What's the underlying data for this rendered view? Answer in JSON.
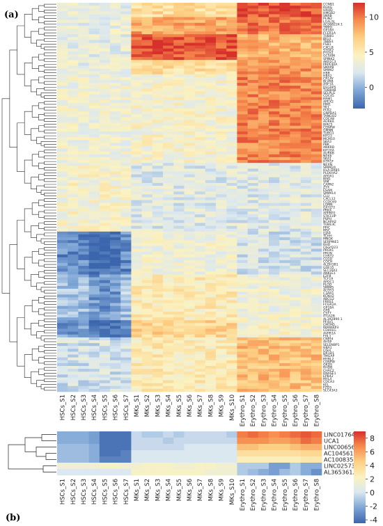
{
  "panel_a_label": "(a)",
  "panel_b_label": "(b)",
  "chart_data": [
    {
      "type": "heatmap",
      "panel": "(a)",
      "x": [
        "HSCs_S1",
        "HSCs_S2",
        "HSCs_S3",
        "HSCs_S4",
        "HSCs_S5",
        "HSCs_S6",
        "HSCs_S7",
        "MKs_S1",
        "MKs_S2",
        "MKs_S3",
        "MKs_S4",
        "MKs_S5",
        "MKs_S6",
        "MKs_S7",
        "MKs_S8",
        "MKs_S9",
        "MKs_S10",
        "Erythro_S1",
        "Erythro_S2",
        "Erythro_S3",
        "Erythro_S4",
        "Erythro_S5",
        "Erythro_S6",
        "Erythro_S7",
        "Erythro_S8"
      ],
      "genes": [
        "CCNB1",
        "RHAG",
        "UROD",
        "HMGB2",
        "SNRB",
        "PLIN2",
        "LGALSL",
        "AC068224.1",
        "TMPO",
        "GP1BA",
        "FCER1A",
        "TUBB1",
        "BIG3",
        "TBBS1",
        "FSB1",
        "CXCL8",
        "STOX2",
        "PTGS1",
        "GCSAM",
        "SPINK2",
        "AKR1C3",
        "PRPF40A",
        "SNRPB",
        "SMIM2",
        "HBB",
        "HBA2",
        "CR1AY",
        "BLVRB",
        "ASF1A",
        "DLGAP5",
        "TUBB4B",
        "SELPLG",
        "CDC45",
        "RRM1",
        "APEX2",
        "PIM1",
        "TK1",
        "PCK2",
        "GNPDA1",
        "TANGO2",
        "CDCA8",
        "AURKA",
        "BIRC5",
        "CENPW",
        "GMNN",
        "TUBG1",
        "KIF23",
        "MCM10",
        "SKA3",
        "PBK",
        "ANKRD",
        "KIF20A",
        "AURKB",
        "NEK6",
        "SKA1",
        "HTR1F",
        "NEXN",
        "SMIM24",
        "HLA-DRB5",
        "PLEKHA2",
        "APOA1",
        "BIN1",
        "VIM",
        "CAPN2",
        "ZYX",
        "ESAM",
        "SMIM14",
        "CLU",
        "CXCL12",
        "CCDC69",
        "LGMN",
        "GXYLT2",
        "PRKX",
        "APPBP2",
        "STK11IP",
        "PSPH",
        "NCAPH2",
        "TUBE3C",
        "PPIC",
        "MSC",
        "GJA4",
        "TCHH",
        "MNGK",
        "SERPINE1",
        "RHD",
        "C6orf223",
        "PROX1",
        "PRUN",
        "CHST2",
        "CD1D",
        "COCH",
        "ALDH3B1",
        "GDF15",
        "SLC16A1",
        "ANKLE1",
        "E2F8",
        "TCF19",
        "APOC1",
        "PLOD",
        "SMIM5",
        "ACER3",
        "C3AR1",
        "KCNH2",
        "ABCG2",
        "FRRS1",
        "FCGR2A",
        "GP1BA",
        "GFB",
        "CST7",
        "ITGA2B",
        "AL392890.1",
        "PF4V1",
        "CMTM5",
        "MARKBP3",
        "CD40LG",
        "AVPR1A",
        "FHL1",
        "CNIH4",
        "AHSP",
        "SELENBP1",
        "HBA1",
        "CISH",
        "DR1D1",
        "TMGAP",
        "MYBL2",
        "CENPW",
        "GKDS",
        "RHDB",
        "CHAC2",
        "RNASE1",
        "EPB42",
        "MYL4",
        "CDCA3",
        "KEL",
        "FZD5",
        "SLC43A3"
      ],
      "legend_ticks": [
        0,
        5,
        10
      ],
      "range": [
        -3,
        12
      ],
      "colormap": [
        "#3b66ad",
        "#7fa6d6",
        "#dbe8f0",
        "#fbf2c1",
        "#fdd084",
        "#f6894c",
        "#d7302b"
      ]
    },
    {
      "type": "heatmap",
      "panel": "(b)",
      "x": [
        "HSCs_S1",
        "HSCs_S2",
        "HSCs_S3",
        "HSCs_S4",
        "HSCs_S5",
        "HSCs_S6",
        "HSCs_S7",
        "MKs_S1",
        "MKs_S2",
        "MKs_S3",
        "MKs_S4",
        "MKs_S5",
        "MKs_S6",
        "MKs_S7",
        "MKs_S8",
        "MKs_S9",
        "MKs_S10",
        "Erythro_S1",
        "Erythro_S2",
        "Erythro_S3",
        "Erythro_S4",
        "Erythro_S5",
        "Erythro_S6",
        "Erythro_S7",
        "Erythro_S8"
      ],
      "y": [
        "LINC01764",
        "UCA1",
        "LINC00656",
        "AC104561.3",
        "AC100835.2",
        "LINC02573",
        "AL365361.1"
      ],
      "values": [
        [
          -2,
          -2,
          -2,
          -2.5,
          -4,
          -4,
          -4,
          -0.5,
          -1,
          -1,
          -0.5,
          -1,
          -0.5,
          -0.5,
          -0.5,
          -0.5,
          -1,
          7,
          7.5,
          7,
          6.5,
          7,
          7.5,
          8,
          7.5
        ],
        [
          -2,
          -2,
          -2,
          -2.5,
          -4,
          -4,
          -4,
          -0.5,
          -0.5,
          -0.5,
          -1,
          -0.5,
          -0.5,
          -0.5,
          -0.5,
          -0.5,
          -0.5,
          6.5,
          6.5,
          6.5,
          6,
          6,
          6.5,
          7.5,
          7
        ],
        [
          -1.5,
          -1.5,
          -1.5,
          -2,
          -4,
          -4,
          -4,
          -0.5,
          -0.5,
          -0.5,
          -0.5,
          -0.5,
          0,
          0,
          0,
          0,
          0,
          5,
          5,
          4.5,
          4.5,
          4.5,
          5,
          5.5,
          5.5
        ],
        [
          -1.5,
          -1.5,
          -1.5,
          -2,
          -4,
          -4,
          -3.5,
          0,
          0,
          0,
          0,
          0,
          0,
          0,
          0,
          0,
          0,
          3.5,
          3.5,
          3.5,
          3.5,
          3.5,
          3.5,
          4,
          4
        ],
        [
          -1.5,
          -1.5,
          -1.5,
          -2,
          -3.5,
          -3.5,
          -3.5,
          0,
          0,
          0,
          0,
          0,
          0,
          0,
          0,
          0,
          0,
          2.5,
          2.5,
          2.5,
          2.5,
          2.5,
          2.5,
          3,
          3
        ],
        [
          1.5,
          1.5,
          1.5,
          1.5,
          2,
          2,
          1.5,
          1.5,
          2,
          2,
          2,
          1.5,
          1.5,
          2,
          2,
          1.5,
          1.5,
          -1,
          -1,
          -1,
          -2.5,
          -2.5,
          -1,
          -2,
          -2
        ],
        [
          0,
          0,
          0,
          0,
          0,
          0,
          0,
          2,
          2,
          2,
          2,
          2,
          2,
          2,
          1.5,
          1.5,
          1.5,
          -1,
          -1.5,
          -2,
          -2.5,
          -1.5,
          -1,
          -2,
          -3
        ]
      ],
      "legend_ticks": [
        8,
        6,
        4,
        2,
        0,
        -2,
        -4
      ],
      "range": [
        -4.5,
        9
      ],
      "colormap": [
        "#3b66ad",
        "#7fa6d6",
        "#dbe8f0",
        "#fbf2c1",
        "#fdd084",
        "#f6894c",
        "#d7302b"
      ]
    }
  ]
}
